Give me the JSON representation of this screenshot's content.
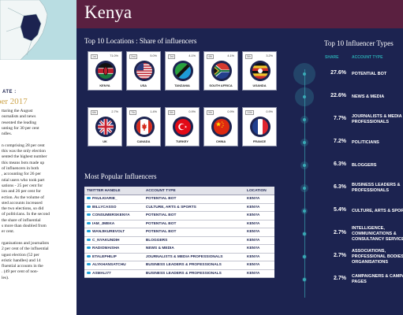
{
  "page": {
    "country": "Kenya",
    "date_label": "ATE :",
    "date_value": "ber 2017",
    "body_text": [
      "ttaring the August",
      "ournalists and news",
      "resented the leading",
      "unting for 30 per cent",
      "ndles.",
      "",
      "n comprising 28 per cent",
      "this was the only election",
      "sented the highest number",
      "this means bots made up",
      "of influencers in both",
      ", accounting for 26 per",
      "ntial users who took part",
      "sations - 25 per cent for",
      "ion and 26 per cent for",
      "ection. As the volume of",
      "sted accounts increased",
      "the two elections, so did",
      "of politicians. In the second",
      "the share of influential",
      "s more than doubled from",
      "er cent.",
      "",
      "rganisations and journalists",
      "2 per cent of the influential",
      "ugust election (52 per",
      "eristic handles) and 14",
      "fluential accounts in the",
      ". (49 per cent of non-",
      "les)."
    ]
  },
  "locations": {
    "title": "Top 10 Locations : Share of influencers"
  },
  "table": {
    "title": "Most Popular Influencers",
    "columns": [
      "TWITTER HANDLE",
      "ACCOUNT TYPE",
      "LOCATION"
    ],
    "rows": [
      [
        "PAULKIARIE_",
        "POTENTIAL BOT",
        "KENYA"
      ],
      [
        "BILLYCASSO",
        "CULTURE, ARTS & SPORTS",
        "KENYA"
      ],
      [
        "CONSUMERSKENYA",
        "POTENTIAL BOT",
        "KENYA"
      ],
      [
        "IAM_JMEKA",
        "POTENTIAL BOT",
        "KENYA"
      ],
      [
        "WANJIKUREVOLT",
        "POTENTIAL BOT",
        "KENYA"
      ],
      [
        "C_NYAKUNDIH",
        "BLOGGERS",
        "KENYA"
      ],
      [
        "RADIOMAISHA",
        "NEWS & MEDIA",
        "KENYA"
      ],
      [
        "ETALEPHILIP",
        "JOURNALISTS & MEDIA PROFESSIONALS",
        "KENYA"
      ],
      [
        "ALYKHANSATCHU",
        "BUSINESS LEADERS & PROFESSIONALS",
        "KENYA"
      ],
      [
        "ASMALI77",
        "BUSINESS LEADERS & PROFESSIONALS",
        "KENYA"
      ]
    ]
  },
  "types": {
    "title": "Top 10 Influencer Types",
    "share_header": "SHARE",
    "type_header": "ACCOUNT TYPE"
  },
  "colors": {
    "background": "#1c2350",
    "header": "#5a2040",
    "accent_teal": "#39a9b5",
    "gold": "#cda44a"
  },
  "chart_data": [
    {
      "type": "table",
      "title": "Top 10 Locations : Share of influencers",
      "entries": [
        {
          "rank": "1st",
          "country": "KENYA",
          "share": "71.0%",
          "icon": "kenya-flag"
        },
        {
          "rank": "2nd",
          "country": "USA",
          "share": "5.0%",
          "icon": "usa-flag"
        },
        {
          "rank": "3rd",
          "country": "TANZANIA",
          "share": "4.1%",
          "icon": "tanzania-flag"
        },
        {
          "rank": "4th",
          "country": "SOUTH AFRICA",
          "share": "4.1%",
          "icon": "south-africa-flag"
        },
        {
          "rank": "5th",
          "country": "UGANDA",
          "share": "3.2%",
          "icon": "uganda-flag"
        },
        {
          "rank": "6th",
          "country": "UK",
          "share": "2.7%",
          "icon": "uk-flag"
        },
        {
          "rank": "7th",
          "country": "CANADA",
          "share": "1.4%",
          "icon": "canada-flag"
        },
        {
          "rank": "8th",
          "country": "TURKEY",
          "share": "0.9%",
          "icon": "turkey-flag"
        },
        {
          "rank": "9th",
          "country": "CHINA",
          "share": "0.9%",
          "icon": "china-flag"
        },
        {
          "rank": "10th",
          "country": "FRANCE",
          "share": "0.9%",
          "icon": "france-flag"
        }
      ]
    },
    {
      "type": "scatter",
      "title": "Top 10 Influencer Types",
      "categories": [
        "POTENTIAL BOT",
        "NEWS & MEDIA",
        "JOURNALISTS & MEDIA\nPROFESSIONALS",
        "POLITICIANS",
        "BLOGGERS",
        "BUSINESS LEADERS &\nPROFESSIONALS",
        "CULTURE, ARTS & SPORTS",
        "INTELLIGENCE,\nCOMMUNICATIONS &\nCONSULTANCY SERVICES",
        "ASSOCIATIONS,\nPROFESSIONAL BODIES &\nORGANISATIONS",
        "CAMPAIGNERS & CAMPAIGN\nPAGES"
      ],
      "values": [
        27.6,
        22.6,
        7.7,
        7.2,
        6.3,
        6.3,
        5.4,
        2.7,
        2.7,
        2.7
      ],
      "labels": [
        "27.6%",
        "22.6%",
        "7.7%",
        "7.2%",
        "6.3%",
        "6.3%",
        "5.4%",
        "2.7%",
        "2.7%",
        "2.7%"
      ]
    }
  ]
}
